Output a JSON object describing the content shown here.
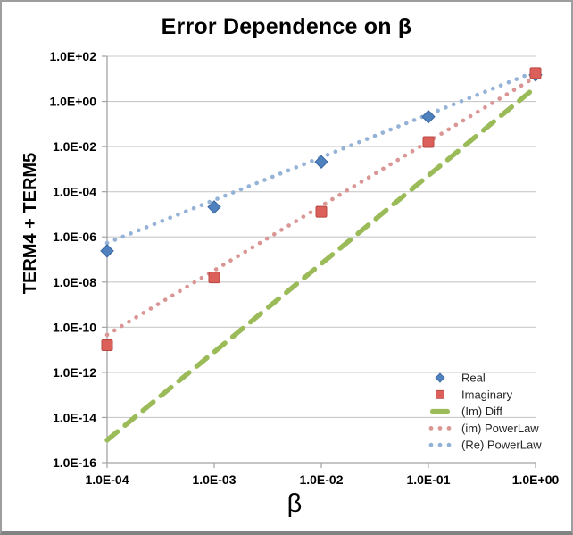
{
  "chart_data": {
    "type": "scatter",
    "title": "Error Dependence on β",
    "xlabel": "β",
    "ylabel": "TERM4 + TERM5",
    "x_scale": "log",
    "y_scale": "log",
    "xlim": [
      0.0001,
      1.0
    ],
    "ylim": [
      1e-16,
      100.0
    ],
    "grid": "horizontal-only",
    "legend_position": "inside-bottom-right",
    "x_tick_labels": [
      "1.0E-04",
      "1.0E-03",
      "1.0E-02",
      "1.0E-01",
      "1.0E+00"
    ],
    "x_tick_values": [
      0.0001,
      0.001,
      0.01,
      0.1,
      1.0
    ],
    "y_tick_labels": [
      "1.0E+02",
      "1.0E+00",
      "1.0E-02",
      "1.0E-04",
      "1.0E-06",
      "1.0E-08",
      "1.0E-10",
      "1.0E-12",
      "1.0E-14",
      "1.0E-16"
    ],
    "y_tick_values": [
      100.0,
      1.0,
      0.01,
      0.0001,
      1e-06,
      1e-08,
      1e-10,
      1e-12,
      1e-14,
      1e-16
    ],
    "colors": {
      "axis": "#a3a3a3",
      "gridline": "#c9c9c9",
      "tick_text": "#000000",
      "legend_text": "#262626",
      "frame_border": "#9e9e9e",
      "real": "#4e81bd",
      "imaginary": "#dc605a",
      "im_diff": "#9bbb59",
      "im_powerlaw": "#d99694",
      "re_powerlaw": "#95b3d7"
    },
    "series": [
      {
        "name": "Real",
        "kind": "points",
        "marker": "diamond",
        "fill": "#4e81bd",
        "stroke": "#3a66a2",
        "x": [
          0.0001,
          0.001,
          0.01,
          0.1,
          1.0
        ],
        "y": [
          2.4e-07,
          2.1e-05,
          0.0021,
          0.21,
          15
        ]
      },
      {
        "name": "Imaginary",
        "kind": "points",
        "marker": "square",
        "fill": "#dc605a",
        "stroke": "#b84742",
        "x": [
          0.0001,
          0.001,
          0.01,
          0.1,
          1.0
        ],
        "y": [
          1.6e-11,
          1.6e-08,
          1.3e-05,
          0.016,
          18
        ]
      },
      {
        "name": "(Im) Diff",
        "kind": "dashed-line",
        "color": "#9bbb59",
        "x": [
          0.0001,
          1.0
        ],
        "y": [
          1e-15,
          4.2
        ]
      },
      {
        "name": "(im) PowerLaw",
        "kind": "dotted-line",
        "color": "#d99694",
        "x": [
          0.0001,
          1.0
        ],
        "y": [
          4.6e-11,
          12
        ]
      },
      {
        "name": "(Re) PowerLaw",
        "kind": "dotted-line",
        "color": "#95b3d7",
        "x": [
          0.0001,
          1.0
        ],
        "y": [
          5.4e-07,
          21
        ]
      }
    ]
  }
}
